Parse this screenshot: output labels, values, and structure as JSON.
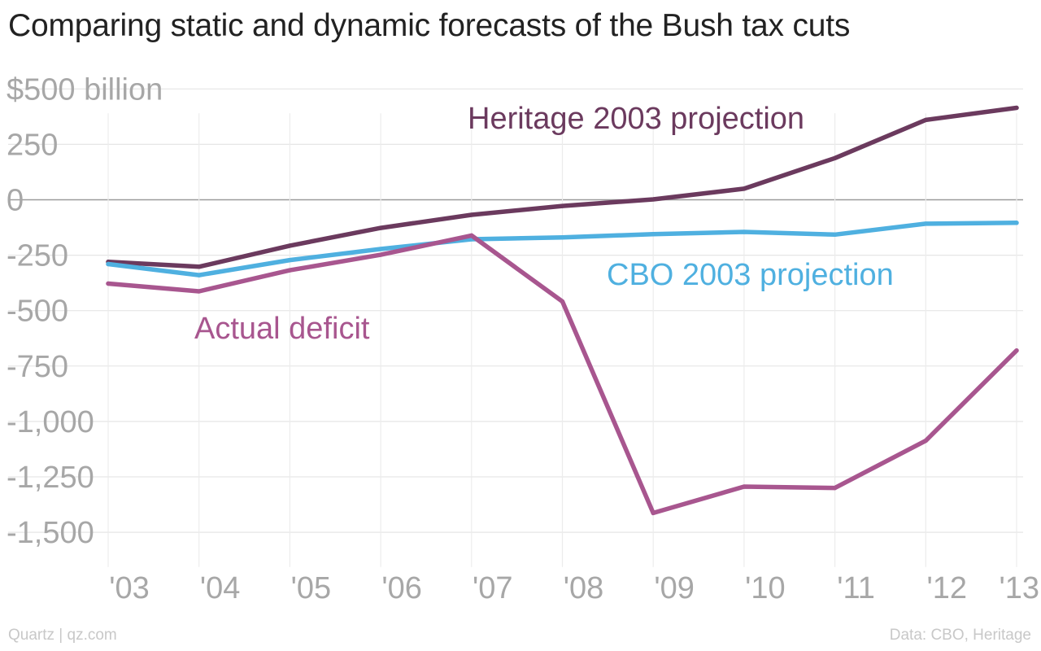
{
  "chart_data": {
    "type": "line",
    "title": "Comparing static and dynamic forecasts of the Bush tax cuts",
    "x": [
      "'03",
      "'04",
      "'05",
      "'06",
      "'07",
      "'08",
      "'09",
      "'10",
      "'11",
      "'12",
      "'13"
    ],
    "y_tick_values": [
      500,
      250,
      0,
      -250,
      -500,
      -750,
      -1000,
      -1250,
      -1500
    ],
    "y_tick_labels": [
      "$500 billion",
      "250",
      "0",
      "-250",
      "-500",
      "-750",
      "-1,000",
      "-1,250",
      "-1,500"
    ],
    "ylim": [
      -1620,
      500
    ],
    "grid": true,
    "series": [
      {
        "name": "Heritage 2003 projection",
        "color": "#6b3a5e",
        "values": [
          -280,
          -302,
          -207,
          -127,
          -68,
          -28,
          2,
          50,
          188,
          360,
          415
        ]
      },
      {
        "name": "CBO 2003 projection",
        "color": "#4fb0e0",
        "values": [
          -290,
          -340,
          -272,
          -222,
          -178,
          -170,
          -155,
          -145,
          -157,
          -108,
          -104
        ]
      },
      {
        "name": "Actual deficit",
        "color": "#a8568f",
        "values": [
          -378,
          -413,
          -318,
          -248,
          -161,
          -459,
          -1413,
          -1294,
          -1300,
          -1087,
          -680
        ]
      }
    ]
  },
  "footer": {
    "source_left": "Quartz | qz.com",
    "source_right": "Data: CBO, Heritage"
  }
}
